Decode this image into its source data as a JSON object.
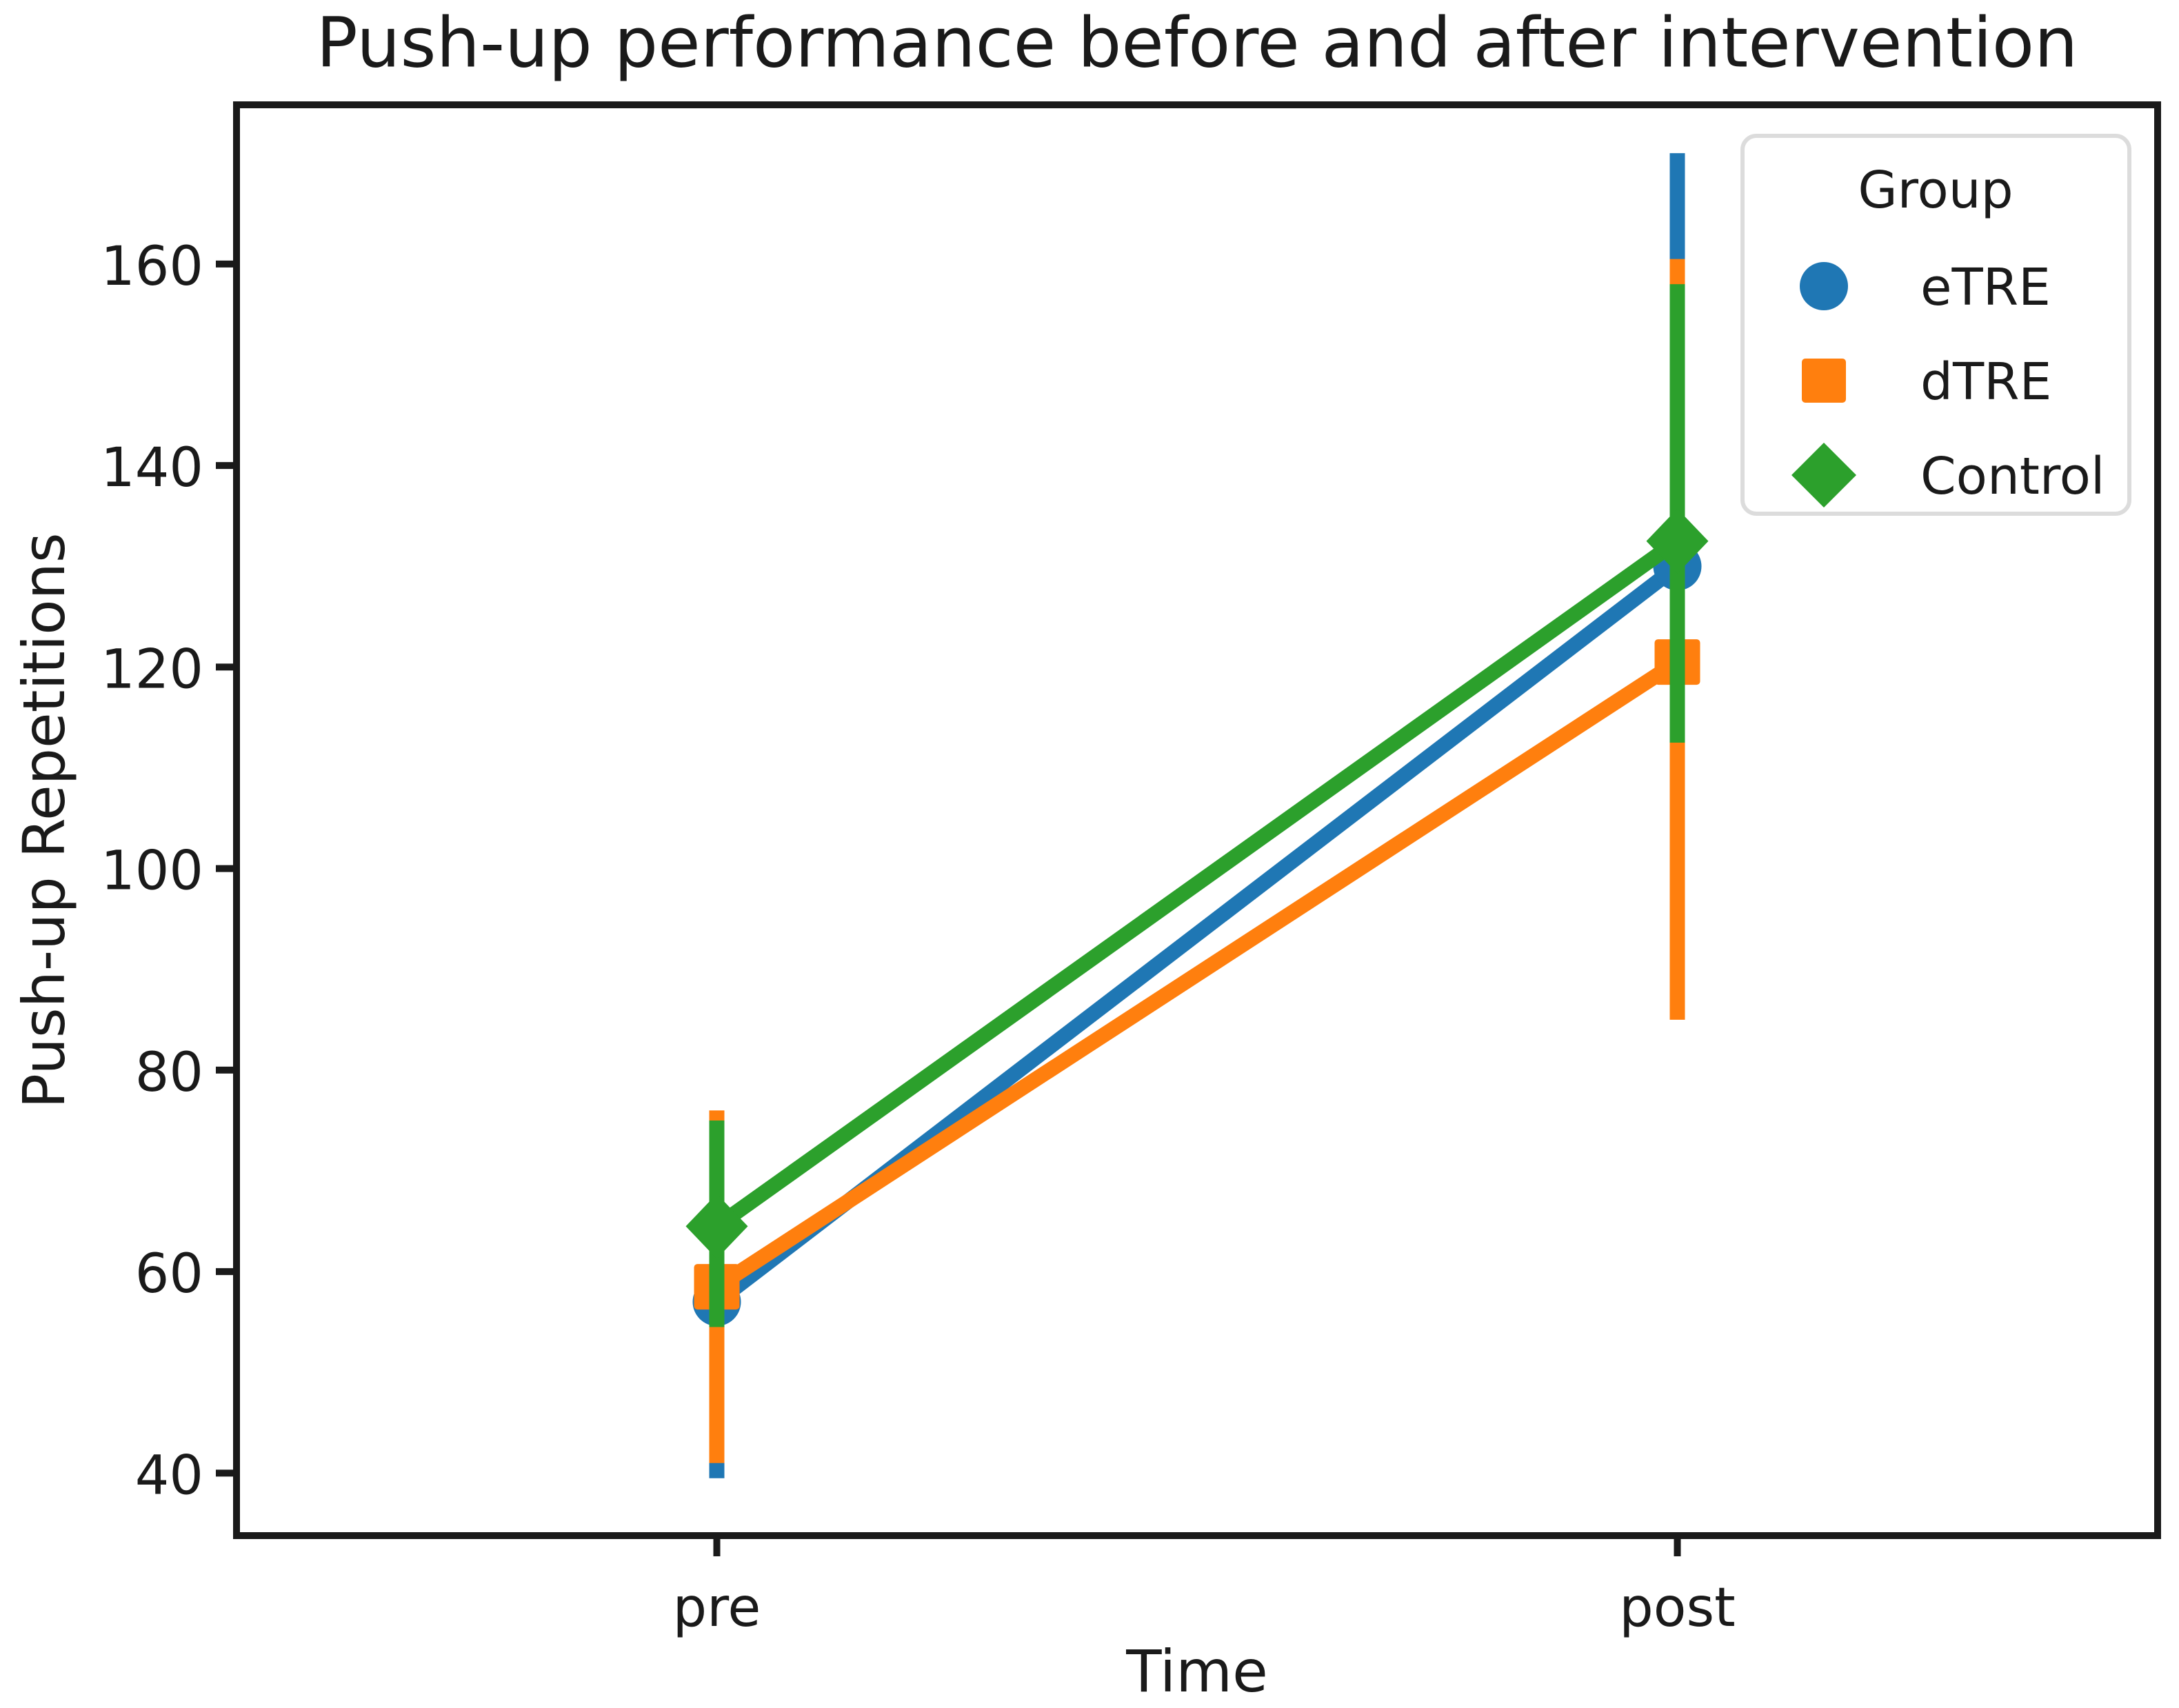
{
  "chart_data": {
    "type": "line",
    "title": "Push-up performance before and after intervention",
    "xlabel": "Time",
    "ylabel": "Push-up Repetitions",
    "categories": [
      "pre",
      "post"
    ],
    "yticks": [
      40,
      60,
      80,
      100,
      120,
      140,
      160
    ],
    "ylim": [
      33.8,
      175.8
    ],
    "grid": false,
    "legend_title": "Group",
    "legend_position": "upper right",
    "error_bar_style": "vertical CI bars, no caps",
    "series": [
      {
        "name": "eTRE",
        "marker": "circle",
        "color": "#1f77b4",
        "values": [
          57,
          130
        ],
        "ci_low": [
          39.5,
          89
        ],
        "ci_high": [
          73,
          171
        ]
      },
      {
        "name": "dTRE",
        "marker": "square",
        "color": "#ff7f0e",
        "values": [
          58.5,
          120.5
        ],
        "ci_low": [
          41,
          85
        ],
        "ci_high": [
          76,
          160.5
        ]
      },
      {
        "name": "Control",
        "marker": "diamond",
        "color": "#2ca02c",
        "values": [
          64.5,
          132.5
        ],
        "ci_low": [
          54.5,
          112.5
        ],
        "ci_high": [
          75,
          158
        ]
      }
    ]
  },
  "colors": {
    "text": "#1a1a1a",
    "spine": "#1a1a1a",
    "background": "#ffffff",
    "legend_border": "#dcdcdc",
    "series_blue": "#1f77b4",
    "series_orange": "#ff7f0e",
    "series_green": "#2ca02c"
  }
}
